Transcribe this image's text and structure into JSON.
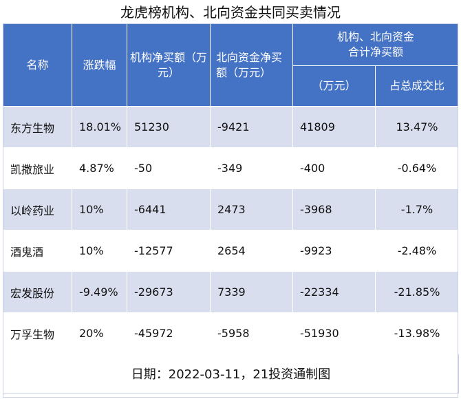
{
  "title": "龙虎榜机构、北向资金共同买卖情况",
  "header": {
    "col_name": "名称",
    "col_change": "涨跌幅",
    "col_inst": "机构净买额（万元）",
    "col_north": "北向资金净买额（万元）",
    "col_group": "机构、北向资金合计净买额",
    "col_total": "（万元）",
    "col_ratio": "占总成交比"
  },
  "rows": [
    {
      "name": "东方生物",
      "change": "18.01%",
      "inst": "51230",
      "north": "-9421",
      "total": "41809",
      "ratio": "13.47%"
    },
    {
      "name": "凯撒旅业",
      "change": "4.87%",
      "inst": "-50",
      "north": "-349",
      "total": "-400",
      "ratio": "-0.64%"
    },
    {
      "name": "以岭药业",
      "change": "10%",
      "inst": "-6441",
      "north": "2473",
      "total": "-3968",
      "ratio": "-1.7%"
    },
    {
      "name": "酒鬼酒",
      "change": "10%",
      "inst": "-12577",
      "north": "2654",
      "total": "-9923",
      "ratio": "-2.48%"
    },
    {
      "name": "宏发股份",
      "change": "-9.49%",
      "inst": "-29673",
      "north": "7339",
      "total": "-22334",
      "ratio": "-21.85%"
    },
    {
      "name": "万孚生物",
      "change": "20%",
      "inst": "-45972",
      "north": "-5958",
      "total": "-51930",
      "ratio": "-13.98%"
    }
  ],
  "footer": "日期：2022-03-11，21投资通制图",
  "colors": {
    "header_bg": "#4472c4",
    "stripe": "#d9deef"
  }
}
